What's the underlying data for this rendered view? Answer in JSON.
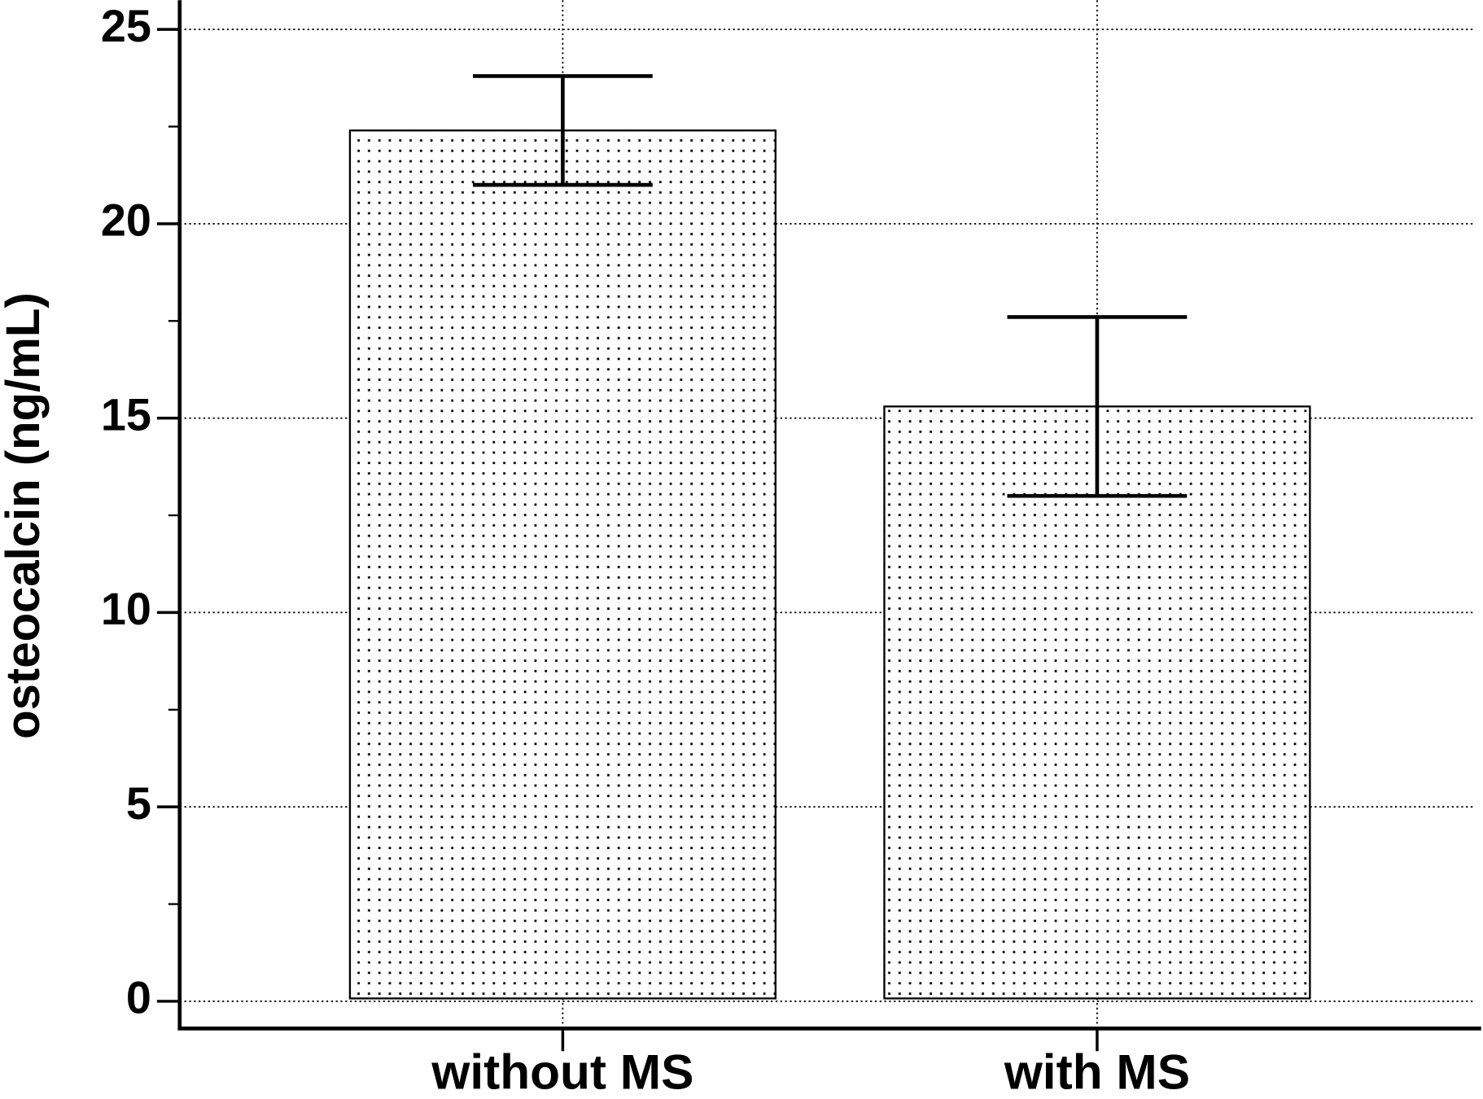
{
  "chart_data": {
    "type": "bar",
    "y_label": "osteocalcin (ng/mL)",
    "categories": [
      "without MS",
      "with MS"
    ],
    "values": [
      22.4,
      15.3
    ],
    "errors": [
      1.4,
      2.3
    ],
    "color": "#ffffff",
    "pattern": "dots",
    "ylim": [
      -0.7,
      25.75
    ],
    "yticks": [
      0,
      5,
      10,
      15,
      20,
      25
    ],
    "yminorticks": [
      2.5,
      7.5,
      12.5,
      17.5,
      22.5
    ],
    "grid": true
  }
}
